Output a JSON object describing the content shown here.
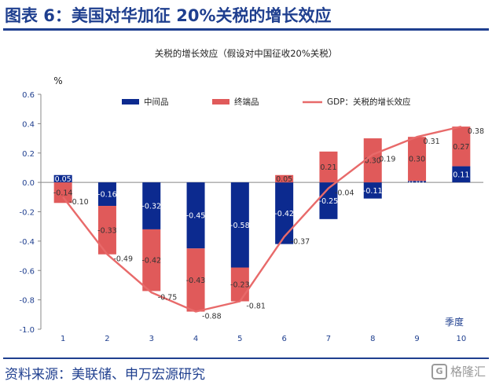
{
  "header": {
    "title": "图表 6：美国对华加征 20%关税的增长效应"
  },
  "footer": {
    "source": "资料来源：美联储、申万宏源研究",
    "watermark": "格隆汇",
    "watermark_icon": "G"
  },
  "colors": {
    "header": "#1f3f8f",
    "intermediate": "#0c2a8f",
    "final": "#e05a5a",
    "gdp": "#e86a6a",
    "axis_text": "#1f3f8f"
  },
  "chart_data": {
    "type": "bar",
    "title": "关税的增长效应（假设对中国征收20%关税）",
    "ylabel": "%",
    "xlabel": "季度",
    "ylim": [
      -1.0,
      0.6
    ],
    "yticks": [
      "0.6",
      "0.4",
      "0.2",
      "0.0",
      "-0.2",
      "-0.4",
      "-0.6",
      "-0.8",
      "-1.0"
    ],
    "categories": [
      "1",
      "2",
      "3",
      "4",
      "5",
      "6",
      "7",
      "8",
      "9",
      "10"
    ],
    "legend_position": "top",
    "series": [
      {
        "name": "中间品",
        "kind": "bar",
        "values": [
          0.05,
          -0.16,
          -0.32,
          -0.45,
          -0.58,
          -0.42,
          -0.25,
          -0.11,
          0.01,
          0.11
        ],
        "labels": [
          "0.05",
          "-0.16",
          "-0.32",
          "-0.45",
          "-0.58",
          "-0.42",
          "-0.25",
          "-0.11",
          "0.01",
          "0.11"
        ]
      },
      {
        "name": "终端品",
        "kind": "bar",
        "values": [
          -0.14,
          -0.33,
          -0.42,
          -0.43,
          -0.23,
          0.05,
          0.21,
          0.3,
          0.3,
          0.27
        ],
        "labels": [
          "-0.14",
          "-0.33",
          "-0.42",
          "-0.43",
          "-0.23",
          "0.05",
          "0.21",
          "0.30",
          "0.30",
          "0.27"
        ]
      },
      {
        "name": "GDP：关税的增长效应",
        "kind": "line",
        "values": [
          -0.1,
          -0.49,
          -0.75,
          -0.88,
          -0.81,
          -0.37,
          -0.04,
          0.19,
          0.31,
          0.38
        ],
        "labels": [
          "-0.10",
          "-0.49",
          "-0.75",
          "-0.88",
          "-0.81",
          "-0.37",
          "-0.04",
          "0.19",
          "0.31",
          "0.38"
        ]
      }
    ]
  }
}
